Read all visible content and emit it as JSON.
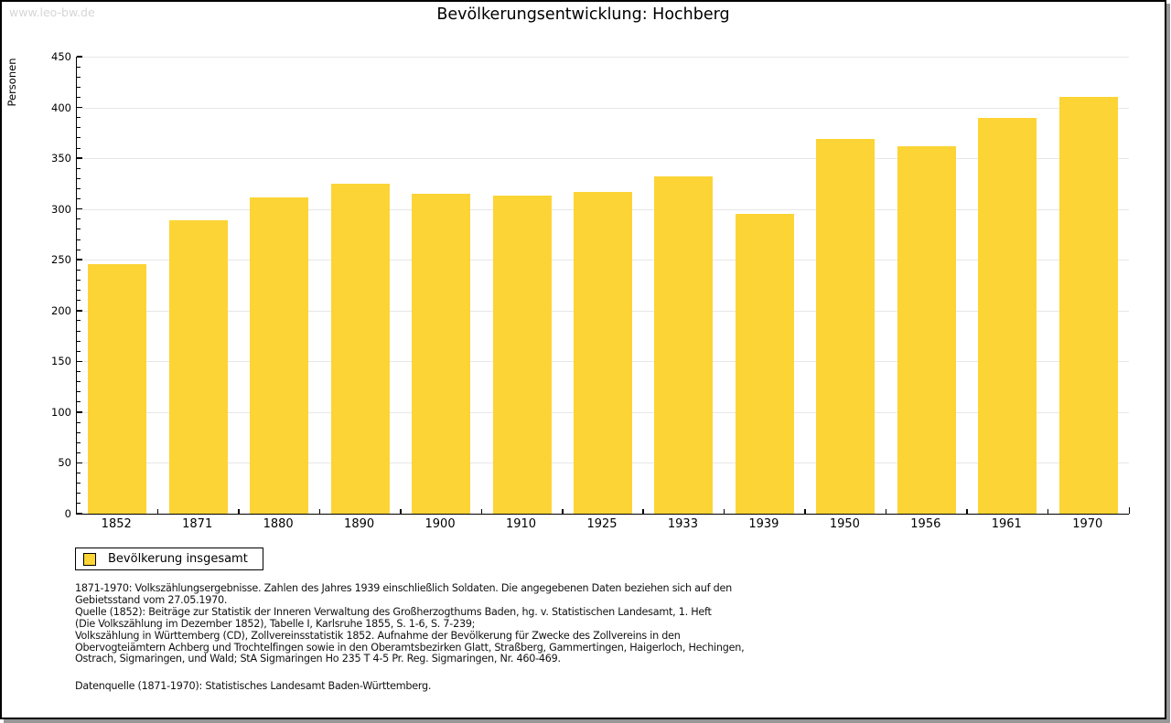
{
  "watermark": "www.leo-bw.de",
  "title": "Bevölkerungsentwicklung: Hochberg",
  "colors": {
    "bar": "#FCD435",
    "grid": "#E7E7E7",
    "axis": "#000000",
    "watermark_text": "#D6D6D6",
    "shadow": "#979797"
  },
  "chart_data": {
    "type": "bar",
    "title": "Bevölkerungsentwicklung: Hochberg",
    "xlabel": "",
    "ylabel": "Personen",
    "categories": [
      "1852",
      "1871",
      "1880",
      "1890",
      "1900",
      "1910",
      "1925",
      "1933",
      "1939",
      "1950",
      "1956",
      "1961",
      "1970"
    ],
    "values": [
      246,
      289,
      311,
      325,
      315,
      313,
      317,
      332,
      295,
      369,
      362,
      390,
      410
    ],
    "ylim": [
      0,
      450
    ],
    "ytick_step": 50,
    "ytick_minor_step": 10,
    "grid": true,
    "legend": [
      "Bevölkerung insgesamt"
    ],
    "legend_position": "bottom-left",
    "bar_color": "#FCD435"
  },
  "legend": {
    "label": "Bevölkerung insgesamt"
  },
  "footnotes": {
    "lines": [
      "1871-1970: Volkszählungsergebnisse. Zahlen des Jahres 1939 einschließlich Soldaten. Die angegebenen Daten beziehen sich auf den",
      "Gebietsstand vom 27.05.1970.",
      "Quelle (1852): Beiträge zur Statistik der Inneren Verwaltung des Großherzogthums Baden, hg. v. Statistischen Landesamt, 1. Heft",
      "(Die Volkszählung im Dezember 1852), Tabelle I, Karlsruhe 1855, S. 1-6, S. 7-239;",
      "Volkszählung in Württemberg (CD), Zollvereinsstatistik 1852. Aufnahme der Bevölkerung für Zwecke des Zollvereins in den",
      "Obervogteiämtern Achberg und Trochtelfingen sowie in den Oberamtsbezirken Glatt, Straßberg, Gammertingen, Haigerloch, Hechingen,",
      "Ostrach, Sigmaringen, und Wald; StA Sigmaringen Ho 235 T 4-5 Pr. Reg. Sigmaringen, Nr. 460-469."
    ],
    "datasource": "Datenquelle (1871-1970): Statistisches Landesamt Baden-Württemberg."
  }
}
